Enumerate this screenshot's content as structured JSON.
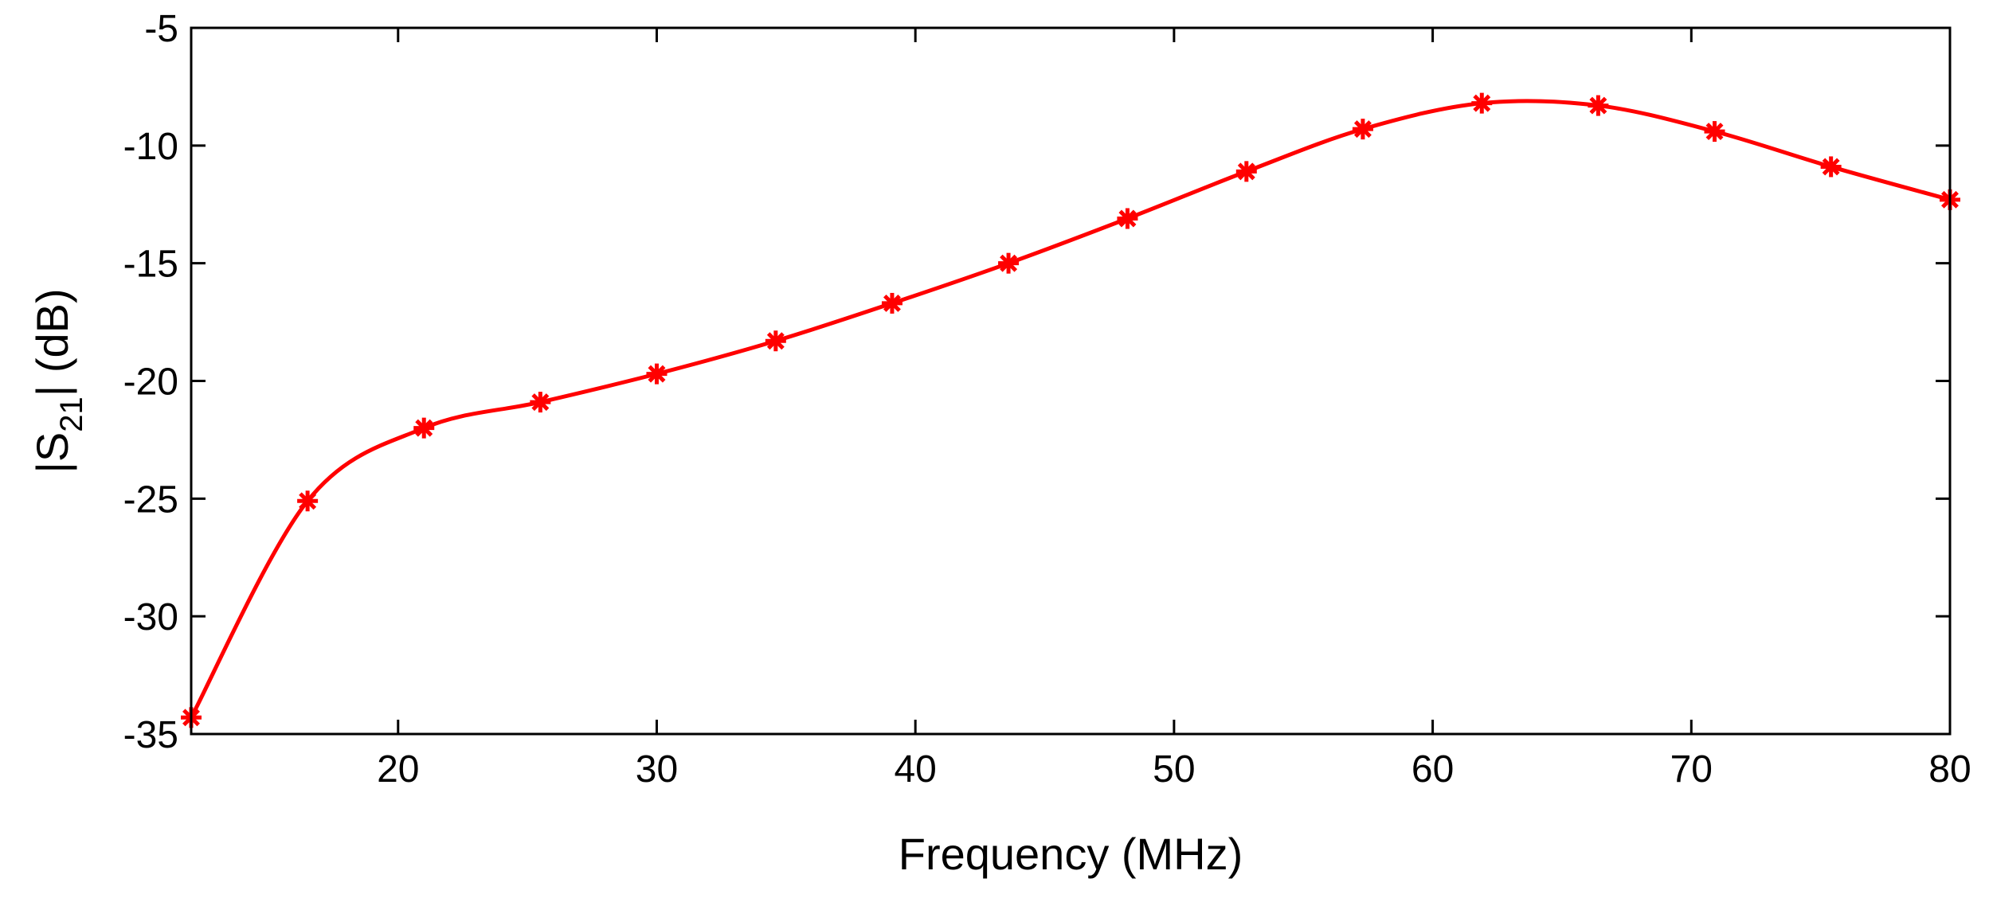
{
  "chart_data": {
    "type": "line",
    "title": "",
    "xlabel": "Frequency (MHz)",
    "ylabel": {
      "prefix": "|S",
      "subscript": "21",
      "suffix": "| (dB)"
    },
    "xlim": [
      12,
      80
    ],
    "ylim": [
      -35,
      -5
    ],
    "xticks": [
      20,
      30,
      40,
      50,
      60,
      70,
      80
    ],
    "yticks": [
      -5,
      -10,
      -15,
      -20,
      -25,
      -30,
      -35
    ],
    "grid": false,
    "legend": null,
    "series": [
      {
        "color": "#ff0000",
        "marker": "asterisk",
        "smooth": true,
        "x": [
          12,
          16.5,
          21,
          25.5,
          30,
          34.6,
          39.1,
          43.6,
          48.2,
          52.8,
          57.3,
          61.9,
          66.4,
          70.9,
          75.4,
          80
        ],
        "y": [
          -34.3,
          -25.1,
          -22.0,
          -20.9,
          -19.7,
          -18.3,
          -16.7,
          -15.0,
          -13.1,
          -11.1,
          -9.3,
          -8.2,
          -8.3,
          -9.4,
          -10.9,
          -12.3
        ]
      }
    ]
  }
}
